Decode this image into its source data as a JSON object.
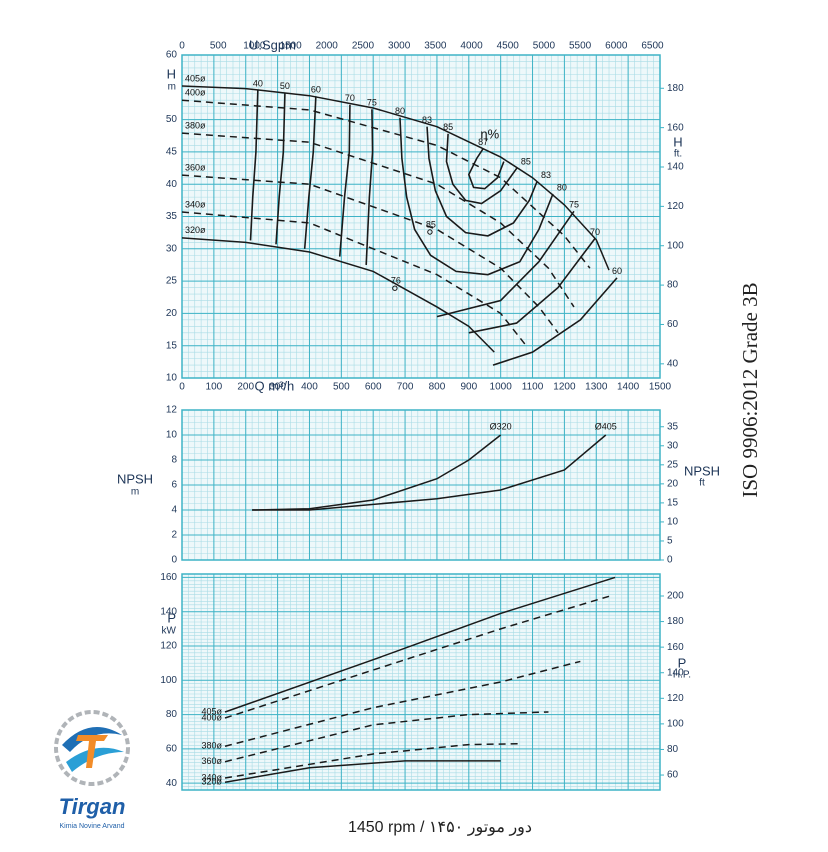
{
  "chart_data": [
    {
      "type": "line",
      "xlim": [
        0,
        1500
      ],
      "xticks": [
        0,
        100,
        200,
        300,
        400,
        500,
        600,
        700,
        800,
        900,
        1000,
        1100,
        1200,
        1300,
        1400,
        1500
      ],
      "xlabel": "Q m³/h",
      "x2lim": [
        0,
        6604
      ],
      "x2ticks": [
        0,
        500,
        1000,
        1500,
        2000,
        2500,
        3000,
        3500,
        4000,
        4500,
        5000,
        5500,
        6000,
        6500
      ],
      "x2label": "U.Sgpm",
      "ylim": [
        10,
        60
      ],
      "yticks": [
        10,
        15,
        20,
        25,
        30,
        35,
        40,
        45,
        50,
        60
      ],
      "ylabel": [
        "H",
        "m"
      ],
      "y2lim": [
        32.8,
        196.9
      ],
      "y2ticks": [
        40,
        60,
        80,
        100,
        120,
        140,
        160,
        180
      ],
      "y2label": [
        "H",
        "ft."
      ],
      "grid": true,
      "xgrid_step": 20,
      "ygrid_step": 1,
      "series_label": "start",
      "series": [
        {
          "name": "405ø",
          "color": "#1a1a1a",
          "dash": false,
          "x": [
            0,
            200,
            400,
            600,
            800,
            1000,
            1100,
            1200,
            1300,
            1340
          ],
          "values": [
            55.2,
            54.8,
            53.7,
            51.8,
            48.9,
            44.2,
            41,
            36.8,
            31.4,
            26.7
          ]
        },
        {
          "name": "400ø",
          "color": "#1a1a1a",
          "dash": true,
          "x": [
            0,
            400,
            800,
            1000,
            1200,
            1280
          ],
          "values": [
            53,
            51.5,
            46,
            41,
            32,
            27
          ]
        },
        {
          "name": "380ø",
          "color": "#1a1a1a",
          "dash": true,
          "x": [
            0,
            400,
            800,
            1000,
            1150,
            1230
          ],
          "values": [
            47.9,
            46.5,
            40,
            34,
            27,
            21
          ]
        },
        {
          "name": "360ø",
          "color": "#1a1a1a",
          "dash": true,
          "x": [
            0,
            400,
            800,
            1000,
            1120,
            1180
          ],
          "values": [
            41.4,
            40,
            33,
            27,
            21,
            17
          ]
        },
        {
          "name": "340ø",
          "color": "#1a1a1a",
          "dash": true,
          "x": [
            0,
            400,
            800,
            1000,
            1080
          ],
          "values": [
            35.7,
            34,
            26,
            20,
            15
          ]
        },
        {
          "name": "320ø",
          "color": "#1a1a1a",
          "dash": false,
          "x": [
            0,
            200,
            400,
            600,
            800,
            900,
            980
          ],
          "values": [
            31.7,
            31,
            29.5,
            26.5,
            21,
            18,
            14
          ]
        }
      ],
      "efficiency_curves": [
        {
          "name": "40",
          "x": [
            238,
            232,
            222,
            215
          ],
          "values": [
            54.6,
            45,
            38,
            31.3
          ]
        },
        {
          "name": "50",
          "x": [
            323,
            318,
            305,
            295
          ],
          "values": [
            54.2,
            45,
            38,
            30.7
          ]
        },
        {
          "name": "60",
          "x": [
            420,
            412,
            398,
            385
          ],
          "values": [
            53.6,
            45,
            38,
            30
          ]
        },
        {
          "name": "70",
          "x": [
            527,
            525,
            510,
            495
          ],
          "values": [
            52.3,
            45,
            38,
            28.8
          ]
        },
        {
          "name": "75",
          "x": [
            596,
            598,
            588,
            578
          ],
          "values": [
            51.6,
            45,
            38,
            27.5
          ]
        },
        {
          "name": "80",
          "x": [
            684,
            690,
            705,
            730,
            780,
            860,
            960,
            1060,
            1120,
            1164
          ],
          "values": [
            50.3,
            44,
            38,
            33,
            29,
            26.5,
            26,
            28,
            33,
            38.5
          ]
        },
        {
          "name": "83",
          "x": [
            769,
            775,
            795,
            830,
            890,
            960,
            1040,
            1090,
            1114
          ],
          "values": [
            48.9,
            44,
            39,
            35,
            32.5,
            32,
            34,
            37.5,
            40.4
          ]
        },
        {
          "name": "85",
          "x": [
            835,
            830,
            850,
            890,
            940,
            1000,
            1051
          ],
          "values": [
            47.8,
            43.5,
            40,
            37.5,
            37,
            39,
            42.5
          ]
        },
        {
          "name": "87",
          "x": [
            945,
            925,
            900,
            915,
            950,
            990,
            1010
          ],
          "values": [
            45.5,
            44,
            41.5,
            39.5,
            39.3,
            41,
            43.5
          ]
        },
        {
          "name": "75",
          "x": [
            1230,
            1120,
            1000,
            800
          ],
          "values": [
            35.8,
            28,
            22,
            19.5
          ]
        },
        {
          "name": "70",
          "x": [
            1296,
            1180,
            1050,
            900
          ],
          "values": [
            31.6,
            24,
            18.5,
            17
          ]
        },
        {
          "name": "60",
          "x": [
            1365,
            1250,
            1100,
            976
          ],
          "values": [
            25.5,
            19,
            14,
            12
          ]
        }
      ],
      "annotations": [
        {
          "text": "η%",
          "x": 966,
          "y": 47.6,
          "marker": false
        },
        {
          "text": "85",
          "x": 778,
          "y": 32.6,
          "marker": true
        },
        {
          "text": "76",
          "x": 668,
          "y": 23.9,
          "marker": true
        }
      ]
    },
    {
      "type": "line",
      "xlim": [
        0,
        1500
      ],
      "ylim": [
        0,
        12
      ],
      "yticks": [
        0,
        2,
        4,
        6,
        8,
        10,
        12
      ],
      "ylabel": [
        "NPSH",
        "m"
      ],
      "y2lim": [
        0,
        39.4
      ],
      "y2ticks": [
        0,
        5,
        10,
        15,
        20,
        25,
        30,
        35
      ],
      "y2label": [
        "NPSH",
        "ft"
      ],
      "grid": true,
      "xgrid_step": 20,
      "ygrid_step": 0.5,
      "series_label": "end",
      "series": [
        {
          "name": "Ø320",
          "color": "#1a1a1a",
          "dash": false,
          "x": [
            220,
            400,
            600,
            800,
            900,
            1000
          ],
          "values": [
            4,
            4.1,
            4.8,
            6.5,
            8,
            10
          ]
        },
        {
          "name": "Ø405",
          "color": "#1a1a1a",
          "dash": false,
          "x": [
            220,
            400,
            800,
            1000,
            1200,
            1330
          ],
          "values": [
            4,
            4,
            4.9,
            5.6,
            7.2,
            10
          ]
        }
      ]
    },
    {
      "type": "line",
      "xlim": [
        0,
        1500
      ],
      "ylim": [
        36,
        162
      ],
      "yticks": [
        40,
        60,
        80,
        100,
        120,
        140,
        160
      ],
      "ylabel": [
        "P",
        "kW"
      ],
      "y2lim": [
        48.3,
        217.2
      ],
      "y2ticks": [
        60,
        80,
        100,
        120,
        140,
        160,
        180,
        200
      ],
      "y2label": [
        "P",
        "H.P."
      ],
      "grid": true,
      "xgrid_step": 20,
      "ygrid_step": 2,
      "series_label": "start",
      "series": [
        {
          "name": "405ø",
          "color": "#1a1a1a",
          "dash": false,
          "x": [
            135,
            600,
            1000,
            1359
          ],
          "values": [
            81.5,
            112,
            139,
            160
          ]
        },
        {
          "name": "400ø",
          "color": "#1a1a1a",
          "dash": true,
          "x": [
            135,
            600,
            1000,
            1340
          ],
          "values": [
            78,
            106,
            130,
            149
          ]
        },
        {
          "name": "380ø",
          "color": "#1a1a1a",
          "dash": true,
          "x": [
            135,
            600,
            1000,
            1250
          ],
          "values": [
            61.5,
            84,
            99,
            111
          ]
        },
        {
          "name": "360ø",
          "color": "#1a1a1a",
          "dash": true,
          "x": [
            135,
            600,
            900,
            1150
          ],
          "values": [
            52.5,
            74,
            80,
            81.5
          ]
        },
        {
          "name": "340ø",
          "color": "#1a1a1a",
          "dash": true,
          "x": [
            135,
            600,
            900,
            1060
          ],
          "values": [
            43,
            57,
            62.5,
            63
          ]
        },
        {
          "name": "320ø",
          "color": "#1a1a1a",
          "dash": false,
          "x": [
            135,
            400,
            700,
            1000
          ],
          "values": [
            40.5,
            49,
            53,
            53
          ]
        }
      ]
    }
  ],
  "side_text": "ISO 9906:2012 Grade 3B",
  "footer": "1450 rpm / ۱۴۵۰ دور موتور",
  "logo": {
    "name": "Tirgan",
    "subtitle": "Kimia Novine Arvand"
  }
}
